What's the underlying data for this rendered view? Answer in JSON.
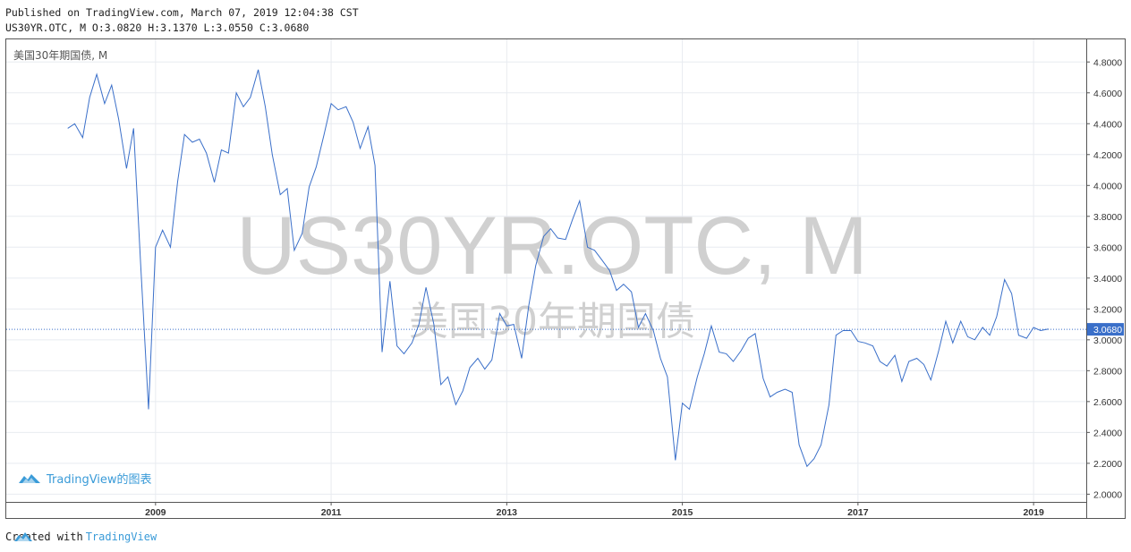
{
  "header": {
    "published": "Published on TradingView.com, March 07, 2019 12:04:38 CST",
    "ohlc": "US30YR.OTC, M O:3.0820 H:3.1370 L:3.0550 C:3.0680"
  },
  "footer": {
    "created_with": "Created with",
    "brand": "TradingView"
  },
  "chart_logo_text": "TradingView的图表",
  "colors": {
    "line": "#3a6fc9",
    "grid": "#e8ebf0",
    "last_price_bg": "#3a6fc9",
    "watermark": "#d0d0d0",
    "brand": "#3a9bd8"
  },
  "chart_data": {
    "type": "line",
    "title": "美国30年期国债, M",
    "watermark": "US30YR.OTC, M",
    "watermark_sub": "美国30年期国债",
    "x_ticks": [
      "2009",
      "2011",
      "2013",
      "2015",
      "2017",
      "2019"
    ],
    "y_ticks": [
      "2.0000",
      "2.2000",
      "2.4000",
      "2.6000",
      "2.8000",
      "3.0000",
      "3.2000",
      "3.4000",
      "3.6000",
      "3.8000",
      "4.0000",
      "4.2000",
      "4.4000",
      "4.6000",
      "4.8000"
    ],
    "ylim": [
      1.95,
      4.9
    ],
    "xlim": [
      2007.3,
      2019.6
    ],
    "last_price": 3.068,
    "last_price_label": "3.0680",
    "grid": true,
    "series": [
      {
        "x": [
          2008.0,
          2008.08,
          2008.17,
          2008.25,
          2008.33,
          2008.42,
          2008.5,
          2008.58,
          2008.67,
          2008.75,
          2008.83,
          2008.92,
          2009.0,
          2009.08,
          2009.17,
          2009.25,
          2009.33,
          2009.42,
          2009.5,
          2009.58,
          2009.67,
          2009.75,
          2009.83,
          2009.92,
          2010.0,
          2010.08,
          2010.17,
          2010.25,
          2010.33,
          2010.42,
          2010.5,
          2010.58,
          2010.67,
          2010.75,
          2010.83,
          2010.92,
          2011.0,
          2011.08,
          2011.17,
          2011.25,
          2011.33,
          2011.42,
          2011.5,
          2011.58,
          2011.67,
          2011.75,
          2011.83,
          2011.92,
          2012.0,
          2012.08,
          2012.17,
          2012.25,
          2012.33,
          2012.42,
          2012.5,
          2012.58,
          2012.67,
          2012.75,
          2012.83,
          2012.92,
          2013.0,
          2013.08,
          2013.17,
          2013.25,
          2013.33,
          2013.42,
          2013.5,
          2013.58,
          2013.67,
          2013.75,
          2013.83,
          2013.92,
          2014.0,
          2014.08,
          2014.17,
          2014.25,
          2014.33,
          2014.42,
          2014.5,
          2014.58,
          2014.67,
          2014.75,
          2014.83,
          2014.92,
          2015.0,
          2015.08,
          2015.17,
          2015.25,
          2015.33,
          2015.42,
          2015.5,
          2015.58,
          2015.67,
          2015.75,
          2015.83,
          2015.92,
          2016.0,
          2016.08,
          2016.17,
          2016.25,
          2016.33,
          2016.42,
          2016.5,
          2016.58,
          2016.67,
          2016.75,
          2016.83,
          2016.92,
          2017.0,
          2017.08,
          2017.17,
          2017.25,
          2017.33,
          2017.42,
          2017.5,
          2017.58,
          2017.67,
          2017.75,
          2017.83,
          2017.92,
          2018.0,
          2018.08,
          2018.17,
          2018.25,
          2018.33,
          2018.42,
          2018.5,
          2018.58,
          2018.67,
          2018.75,
          2018.83,
          2018.92,
          2019.0,
          2019.08,
          2019.17
        ],
        "values": [
          4.37,
          4.4,
          4.31,
          4.57,
          4.72,
          4.53,
          4.65,
          4.43,
          4.11,
          4.37,
          3.5,
          2.55,
          3.6,
          3.71,
          3.6,
          4.02,
          4.33,
          4.28,
          4.3,
          4.21,
          4.02,
          4.23,
          4.21,
          4.6,
          4.51,
          4.57,
          4.75,
          4.51,
          4.2,
          3.94,
          3.98,
          3.58,
          3.69,
          3.99,
          4.12,
          4.33,
          4.53,
          4.49,
          4.51,
          4.41,
          4.24,
          4.38,
          4.13,
          2.92,
          3.38,
          2.96,
          2.91,
          2.98,
          3.1,
          3.34,
          3.1,
          2.71,
          2.76,
          2.58,
          2.67,
          2.82,
          2.88,
          2.81,
          2.87,
          3.17,
          3.09,
          3.1,
          2.88,
          3.22,
          3.48,
          3.67,
          3.72,
          3.66,
          3.65,
          3.78,
          3.9,
          3.6,
          3.58,
          3.52,
          3.45,
          3.32,
          3.36,
          3.31,
          3.08,
          3.17,
          3.06,
          2.88,
          2.76,
          2.22,
          2.59,
          2.55,
          2.76,
          2.91,
          3.09,
          2.92,
          2.91,
          2.86,
          2.93,
          3.01,
          3.04,
          2.75,
          2.63,
          2.66,
          2.68,
          2.66,
          2.32,
          2.18,
          2.23,
          2.32,
          2.58,
          3.03,
          3.06,
          3.06,
          2.99,
          2.98,
          2.96,
          2.86,
          2.83,
          2.9,
          2.73,
          2.86,
          2.88,
          2.84,
          2.74,
          2.93,
          3.12,
          2.98,
          3.12,
          3.02,
          3.0,
          3.08,
          3.03,
          3.15,
          3.39,
          3.3,
          3.03,
          3.01,
          3.08,
          3.06,
          3.07
        ]
      }
    ]
  }
}
